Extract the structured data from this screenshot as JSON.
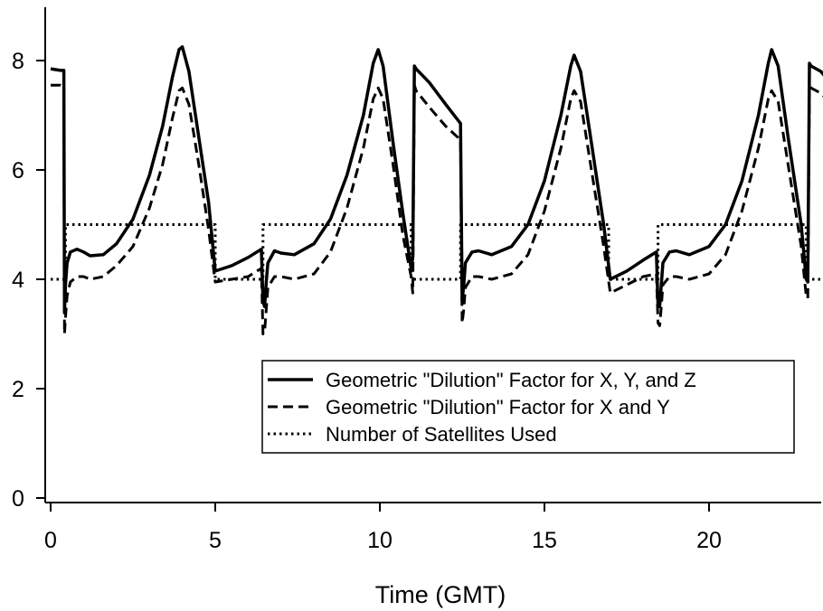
{
  "chart_data": {
    "type": "line",
    "title": "",
    "xlabel": "Time (GMT)",
    "ylabel": "",
    "xlim": [
      0,
      23.8
    ],
    "ylim": [
      0,
      8.6
    ],
    "x_ticks": [
      0,
      5,
      10,
      15,
      20
    ],
    "y_ticks": [
      0,
      2,
      4,
      6,
      8
    ],
    "grid": false,
    "legend_position": "lower-right",
    "series": [
      {
        "name": "Geometric \"Dilution\" Factor for X, Y, and Z",
        "style": "solid",
        "color": "#000000",
        "x": [
          0.0,
          0.3,
          0.4,
          0.42,
          0.45,
          0.5,
          0.6,
          0.8,
          1.0,
          1.2,
          1.6,
          2.0,
          2.5,
          3.0,
          3.4,
          3.7,
          3.9,
          4.0,
          4.2,
          4.5,
          4.8,
          5.0,
          5.5,
          6.0,
          6.4,
          6.45,
          6.5,
          6.55,
          6.6,
          6.8,
          7.0,
          7.4,
          8.0,
          8.5,
          9.0,
          9.5,
          9.8,
          9.95,
          10.1,
          10.4,
          10.7,
          10.95,
          11.0,
          11.05,
          11.1,
          11.5,
          12.0,
          12.45,
          12.5,
          12.55,
          12.6,
          12.8,
          13.0,
          13.4,
          14.0,
          14.5,
          15.0,
          15.5,
          15.8,
          15.9,
          16.1,
          16.4,
          16.8,
          17.0,
          17.5,
          18.0,
          18.4,
          18.45,
          18.5,
          18.55,
          18.6,
          18.8,
          19.0,
          19.4,
          20.0,
          20.5,
          21.0,
          21.5,
          21.8,
          21.9,
          22.1,
          22.4,
          22.8,
          22.95,
          23.0,
          23.05,
          23.1,
          23.4,
          23.8
        ],
        "y": [
          7.85,
          7.82,
          7.82,
          3.4,
          3.9,
          4.3,
          4.5,
          4.55,
          4.5,
          4.43,
          4.45,
          4.65,
          5.1,
          5.9,
          6.8,
          7.7,
          8.2,
          8.25,
          7.8,
          6.6,
          5.4,
          4.15,
          4.25,
          4.4,
          4.55,
          3.6,
          3.5,
          3.95,
          4.3,
          4.52,
          4.48,
          4.45,
          4.65,
          5.1,
          5.9,
          7.0,
          7.95,
          8.2,
          7.9,
          6.5,
          5.2,
          4.2,
          4.4,
          7.9,
          7.85,
          7.6,
          7.2,
          6.85,
          3.6,
          3.9,
          4.3,
          4.5,
          4.52,
          4.45,
          4.6,
          5.0,
          5.8,
          7.0,
          7.9,
          8.1,
          7.8,
          6.6,
          5.0,
          4.0,
          4.15,
          4.35,
          4.5,
          3.5,
          3.5,
          3.9,
          4.3,
          4.5,
          4.52,
          4.45,
          4.6,
          5.0,
          5.8,
          7.0,
          7.95,
          8.2,
          7.9,
          6.6,
          5.0,
          4.0,
          3.95,
          7.95,
          7.9,
          7.8,
          7.5
        ]
      },
      {
        "name": "Geometric \"Dilution\" Factor for X and Y",
        "style": "dashed",
        "color": "#000000",
        "x": [
          0.0,
          0.3,
          0.4,
          0.42,
          0.45,
          0.5,
          0.6,
          0.8,
          1.0,
          1.2,
          1.6,
          2.0,
          2.5,
          3.0,
          3.4,
          3.7,
          3.9,
          4.0,
          4.2,
          4.5,
          4.8,
          5.0,
          5.5,
          6.0,
          6.4,
          6.45,
          6.5,
          6.55,
          6.6,
          6.8,
          7.0,
          7.4,
          8.0,
          8.5,
          9.0,
          9.5,
          9.8,
          9.95,
          10.1,
          10.4,
          10.7,
          10.95,
          11.0,
          11.05,
          11.1,
          11.5,
          12.0,
          12.45,
          12.5,
          12.55,
          12.6,
          12.8,
          13.0,
          13.4,
          14.0,
          14.5,
          15.0,
          15.5,
          15.8,
          15.9,
          16.1,
          16.4,
          16.8,
          17.0,
          17.5,
          18.0,
          18.4,
          18.45,
          18.5,
          18.55,
          18.6,
          18.8,
          19.0,
          19.4,
          20.0,
          20.5,
          21.0,
          21.5,
          21.8,
          21.9,
          22.1,
          22.4,
          22.8,
          22.95,
          23.0,
          23.05,
          23.1,
          23.4,
          23.8
        ],
        "y": [
          7.55,
          7.55,
          7.5,
          3.0,
          3.3,
          3.7,
          3.95,
          4.05,
          4.05,
          4.0,
          4.05,
          4.25,
          4.6,
          5.3,
          6.1,
          6.95,
          7.45,
          7.5,
          7.2,
          6.1,
          4.9,
          3.95,
          4.0,
          4.05,
          4.2,
          3.0,
          3.05,
          3.45,
          3.85,
          4.05,
          4.05,
          4.0,
          4.1,
          4.5,
          5.3,
          6.4,
          7.3,
          7.5,
          7.3,
          6.1,
          4.8,
          4.05,
          3.75,
          7.55,
          7.45,
          7.15,
          6.8,
          6.55,
          3.2,
          3.45,
          3.85,
          4.05,
          4.05,
          4.0,
          4.1,
          4.45,
          5.25,
          6.4,
          7.3,
          7.45,
          7.25,
          6.1,
          4.6,
          3.75,
          3.9,
          4.05,
          4.1,
          3.2,
          3.15,
          3.5,
          3.9,
          4.05,
          4.05,
          4.0,
          4.1,
          4.45,
          5.25,
          6.4,
          7.3,
          7.45,
          7.25,
          6.1,
          4.6,
          3.7,
          3.65,
          7.55,
          7.5,
          7.4,
          7.15
        ]
      },
      {
        "name": "Number of Satellites Used",
        "style": "dotted",
        "color": "#000000",
        "x": [
          0.0,
          0.45,
          0.45,
          5.0,
          5.0,
          6.45,
          6.45,
          10.95,
          10.95,
          12.45,
          12.45,
          16.95,
          16.95,
          18.45,
          18.45,
          22.95,
          22.95,
          23.8
        ],
        "y": [
          4,
          4,
          5,
          5,
          4,
          4,
          5,
          5,
          4,
          4,
          5,
          5,
          4,
          4,
          5,
          5,
          4,
          4
        ]
      }
    ]
  }
}
